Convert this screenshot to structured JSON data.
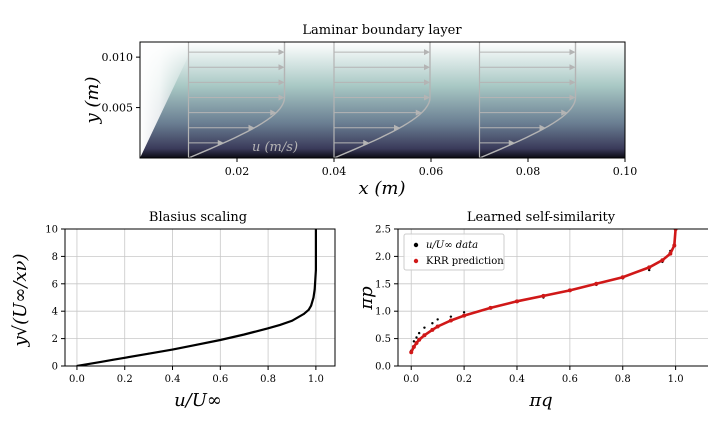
{
  "chart_data": [
    {
      "id": "top",
      "type": "heatmap",
      "title": "Laminar boundary layer",
      "xlabel": "x (m)",
      "ylabel": "y (m)",
      "xlim": [
        0.0,
        0.1
      ],
      "ylim": [
        0.0,
        0.0115
      ],
      "x_ticks": [
        0.02,
        0.04,
        0.06,
        0.08,
        0.1
      ],
      "x_tick_labels": [
        "0.02",
        "0.04",
        "0.06",
        "0.08",
        "0.10"
      ],
      "y_ticks": [
        0.005,
        0.01
      ],
      "y_tick_labels": [
        "0.005",
        "0.010"
      ],
      "colormap": [
        "#0a0a12",
        "#3a3a5a",
        "#6a7e92",
        "#a8c8c4",
        "#ffffff"
      ],
      "profile_stations_x": [
        0.01,
        0.04,
        0.07
      ],
      "arrow_heights_y": [
        0.0015,
        0.003,
        0.0045,
        0.006,
        0.0075,
        0.009,
        0.0105
      ],
      "annotation": "u (m/s)",
      "profile_color": "#b4b4b4"
    },
    {
      "id": "left",
      "type": "line",
      "title": "Blasius scaling",
      "xlabel": "u/U∞",
      "ylabel": "y√(U∞/xν)",
      "xlim": [
        -0.05,
        1.08
      ],
      "ylim": [
        0,
        10
      ],
      "x_ticks": [
        0.0,
        0.2,
        0.4,
        0.6,
        0.8,
        1.0
      ],
      "x_tick_labels": [
        "0.0",
        "0.2",
        "0.4",
        "0.6",
        "0.8",
        "1.0"
      ],
      "y_ticks": [
        0,
        2,
        4,
        6,
        8,
        10
      ],
      "y_tick_labels": [
        "0",
        "2",
        "4",
        "6",
        "8",
        "10"
      ],
      "grid": true,
      "series": [
        {
          "x": [
            0.0,
            0.05,
            0.1,
            0.15,
            0.2,
            0.3,
            0.4,
            0.5,
            0.6,
            0.7,
            0.8,
            0.85,
            0.9,
            0.95,
            0.97,
            0.98,
            0.99,
            0.995,
            1.0,
            1.0
          ],
          "y": [
            0.0,
            0.15,
            0.3,
            0.45,
            0.6,
            0.9,
            1.2,
            1.55,
            1.9,
            2.3,
            2.75,
            3.0,
            3.3,
            3.8,
            4.1,
            4.4,
            5.0,
            5.6,
            7.0,
            10.0
          ],
          "color": "#000000"
        }
      ]
    },
    {
      "id": "right",
      "type": "scatter",
      "title": "Learned self-similarity",
      "xlabel": "πq",
      "ylabel": "πp",
      "xlim": [
        -0.05,
        1.13
      ],
      "ylim": [
        0.0,
        2.5
      ],
      "x_ticks": [
        0.0,
        0.2,
        0.4,
        0.6,
        0.8,
        1.0
      ],
      "x_tick_labels": [
        "0.0",
        "0.2",
        "0.4",
        "0.6",
        "0.8",
        "1.0"
      ],
      "y_ticks": [
        0.0,
        0.5,
        1.0,
        1.5,
        2.0,
        2.5
      ],
      "y_tick_labels": [
        "0.0",
        "0.5",
        "1.0",
        "1.5",
        "2.0",
        "2.5"
      ],
      "grid": true,
      "legend": "top-left",
      "series": [
        {
          "name": "u/U∞ data",
          "color": "#000000",
          "x": [
            0.0,
            0.01,
            0.02,
            0.03,
            0.05,
            0.08,
            0.1,
            0.15,
            0.2,
            0.3,
            0.4,
            0.5,
            0.6,
            0.7,
            0.8,
            0.9,
            0.95,
            0.98,
            1.0
          ],
          "y": [
            0.28,
            0.45,
            0.52,
            0.6,
            0.7,
            0.78,
            0.85,
            0.9,
            0.98,
            1.06,
            1.18,
            1.25,
            1.38,
            1.48,
            1.6,
            1.75,
            1.9,
            2.1,
            2.5
          ]
        },
        {
          "name": "KRR prediction",
          "color": "#d01818",
          "x": [
            0.0,
            0.01,
            0.02,
            0.03,
            0.05,
            0.08,
            0.1,
            0.15,
            0.2,
            0.3,
            0.4,
            0.5,
            0.6,
            0.7,
            0.8,
            0.9,
            0.95,
            0.98,
            0.995,
            1.0
          ],
          "y": [
            0.25,
            0.35,
            0.42,
            0.48,
            0.56,
            0.66,
            0.72,
            0.83,
            0.92,
            1.06,
            1.18,
            1.28,
            1.38,
            1.5,
            1.62,
            1.8,
            1.93,
            2.05,
            2.2,
            2.5
          ]
        }
      ]
    }
  ]
}
